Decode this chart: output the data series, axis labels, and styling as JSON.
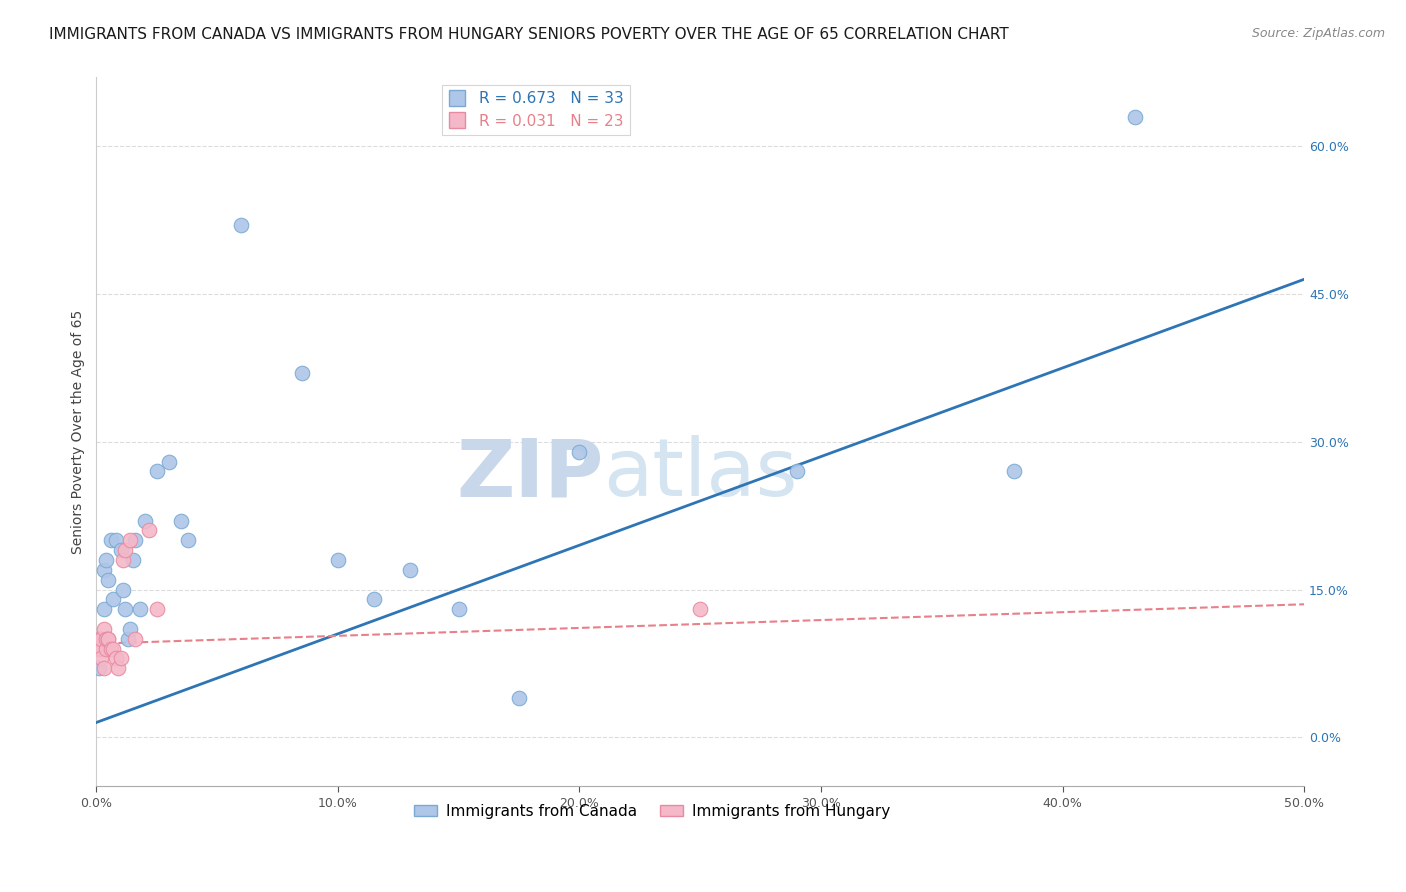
{
  "title": "IMMIGRANTS FROM CANADA VS IMMIGRANTS FROM HUNGARY SENIORS POVERTY OVER THE AGE OF 65 CORRELATION CHART",
  "source": "Source: ZipAtlas.com",
  "ylabel": "Seniors Poverty Over the Age of 65",
  "xlim": [
    0.0,
    0.5
  ],
  "ylim": [
    -0.05,
    0.67
  ],
  "yticks_right": [
    0.0,
    0.15,
    0.3,
    0.45,
    0.6
  ],
  "canada_x": [
    0.001,
    0.002,
    0.003,
    0.003,
    0.004,
    0.005,
    0.006,
    0.007,
    0.008,
    0.01,
    0.011,
    0.012,
    0.013,
    0.014,
    0.015,
    0.016,
    0.018,
    0.02,
    0.025,
    0.03,
    0.035,
    0.038,
    0.06,
    0.085,
    0.1,
    0.115,
    0.13,
    0.15,
    0.175,
    0.2,
    0.29,
    0.38,
    0.43
  ],
  "canada_y": [
    0.07,
    0.1,
    0.17,
    0.13,
    0.18,
    0.16,
    0.2,
    0.14,
    0.2,
    0.19,
    0.15,
    0.13,
    0.1,
    0.11,
    0.18,
    0.2,
    0.13,
    0.22,
    0.27,
    0.28,
    0.22,
    0.2,
    0.52,
    0.37,
    0.18,
    0.14,
    0.17,
    0.13,
    0.04,
    0.29,
    0.27,
    0.27,
    0.63
  ],
  "hungary_x": [
    0.001,
    0.001,
    0.002,
    0.002,
    0.002,
    0.003,
    0.003,
    0.004,
    0.004,
    0.005,
    0.005,
    0.006,
    0.007,
    0.008,
    0.009,
    0.01,
    0.011,
    0.012,
    0.014,
    0.016,
    0.022,
    0.025,
    0.25
  ],
  "hungary_y": [
    0.1,
    0.09,
    0.09,
    0.08,
    0.1,
    0.11,
    0.07,
    0.09,
    0.1,
    0.1,
    0.1,
    0.09,
    0.09,
    0.08,
    0.07,
    0.08,
    0.18,
    0.19,
    0.2,
    0.1,
    0.21,
    0.13,
    0.13
  ],
  "canada_color": "#AEC6E8",
  "hungary_color": "#F4B8C8",
  "canada_edge_color": "#7AAAD4",
  "hungary_edge_color": "#E88AA0",
  "canada_trend_color": "#2E75B6",
  "hungary_trend_color": "#E8808A",
  "canada_trend_start_y": 0.015,
  "canada_trend_end_y": 0.465,
  "hungary_trend_start_y": 0.095,
  "hungary_trend_end_y": 0.135,
  "watermark_zip": "ZIP",
  "watermark_atlas": "atlas",
  "watermark_color": "#C8D8EA",
  "legend_label_canada": "Immigrants from Canada",
  "legend_label_hungary": "Immigrants from Hungary",
  "legend_R_canada": "R = 0.673",
  "legend_N_canada": "N = 33",
  "legend_R_hungary": "R = 0.031",
  "legend_N_hungary": "N = 23",
  "dot_size": 110,
  "title_fontsize": 11,
  "axis_label_fontsize": 10,
  "tick_fontsize": 9,
  "legend_fontsize": 11,
  "source_fontsize": 9,
  "background_color": "#FFFFFF",
  "grid_color": "#DCDCDC"
}
